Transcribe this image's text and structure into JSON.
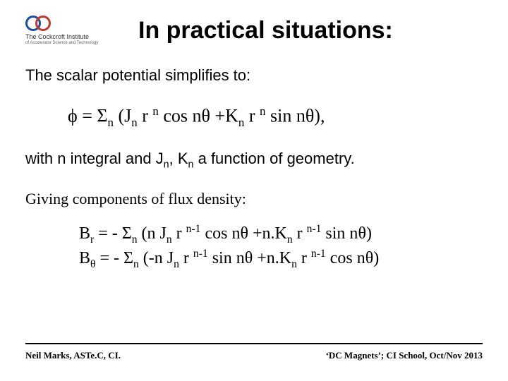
{
  "logo": {
    "line1": "The Cockcroft Institute",
    "line2": "of Accelerator Science and Technology"
  },
  "title": "In practical situations:",
  "intro": "The scalar potential simplifies to:",
  "equation1": {
    "phi": "ϕ",
    "eq": " = ",
    "sigma": "Σ",
    "part_a": " (J",
    "r": " r ",
    "cos": " cos n",
    "theta": "θ",
    "plus": " +K",
    "sin": " sin n",
    "close": "),"
  },
  "mid": {
    "a": "with n integral and  J",
    "b": ", K",
    "c": "  a function of geometry."
  },
  "lead2": "Giving components of flux density:",
  "eq2": {
    "Br_lhs": "B",
    "rhs_prefix": " = - ",
    "sigma": "Σ",
    "Br_a": " (n J",
    "r": " r ",
    "exp": "n-1",
    "cos": " cos n",
    "theta": "θ",
    "plus": " +n.K",
    "sin": " sin n",
    "close": ")",
    "Bt_a": " (-n J"
  },
  "footer": {
    "left": "Neil Marks, ASTe.C, CI.",
    "right": "‘DC Magnets’; CI School, Oct/Nov 2013"
  }
}
